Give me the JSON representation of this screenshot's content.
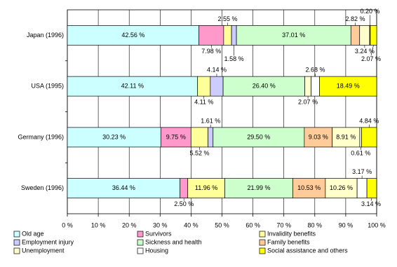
{
  "chart_data": {
    "type": "stacked-bar-horizontal",
    "categories": [
      "Japan (1996)",
      "USA (1995)",
      "Germany (1996)",
      "Sweden (1996)"
    ],
    "series": [
      {
        "name": "Old age",
        "color": "#ccffff",
        "values": [
          42.56,
          42.11,
          30.23,
          36.44
        ],
        "value_labels": [
          "42.56 %",
          "42.11 %",
          "30.23 %",
          "36.44 %"
        ]
      },
      {
        "name": "Survivors",
        "color": "#ff99cc",
        "values": [
          7.98,
          null,
          9.75,
          2.5
        ],
        "value_labels": [
          "7.98 %",
          null,
          "9.75 %",
          "2.50 %"
        ]
      },
      {
        "name": "Invalidity benefits",
        "color": "#ffff99",
        "values": [
          2.55,
          4.11,
          5.52,
          11.96
        ],
        "value_labels": [
          "2.55 %",
          "4.11 %",
          "5.52 %",
          "11.96 %"
        ]
      },
      {
        "name": "Employment injury",
        "color": "#ccccff",
        "values": [
          1.58,
          4.14,
          1.61,
          null
        ],
        "value_labels": [
          "1.58 %",
          "4.14 %",
          "1.61 %",
          null
        ]
      },
      {
        "name": "Sickness and health",
        "color": "#ccffcc",
        "values": [
          37.01,
          26.4,
          29.5,
          21.99
        ],
        "value_labels": [
          "37.01 %",
          "26.40 %",
          "29.50 %",
          "21.99 %"
        ]
      },
      {
        "name": "Family benefits",
        "color": "#ffcc99",
        "values": [
          2.82,
          null,
          9.03,
          10.53
        ],
        "value_labels": [
          "2.82 %",
          null,
          "9.03 %",
          "10.53 %"
        ]
      },
      {
        "name": "Unemployment",
        "color": "#ffffcc",
        "values": [
          3.24,
          2.07,
          8.91,
          10.26
        ],
        "value_labels": [
          "3.24 %",
          "2.07 %",
          "8.91 %",
          "10.26 %"
        ]
      },
      {
        "name": "Housing",
        "color": "#ffffff",
        "values": [
          0.2,
          2.68,
          0.61,
          3.17
        ],
        "value_labels": [
          "0.20 %",
          "2.68 %",
          "0.61 %",
          "3.17 %"
        ]
      },
      {
        "name": "Social assistance and others",
        "color": "#ffff00",
        "values": [
          2.07,
          18.49,
          4.84,
          3.14
        ],
        "value_labels": [
          "2.07 %",
          "18.49 %",
          "4.84 %",
          "3.14 %"
        ]
      }
    ],
    "xlim": [
      0,
      100
    ],
    "xticks": [
      {
        "value": 0,
        "label": "0 %"
      },
      {
        "value": 10,
        "label": "10 %"
      },
      {
        "value": 20,
        "label": "20 %"
      },
      {
        "value": 30,
        "label": "30 %"
      },
      {
        "value": 40,
        "label": "40 %"
      },
      {
        "value": 50,
        "label": "50 %"
      },
      {
        "value": 60,
        "label": "60 %"
      },
      {
        "value": 70,
        "label": "70 %"
      },
      {
        "value": 80,
        "label": "80 %"
      },
      {
        "value": 90,
        "label": "90 %"
      },
      {
        "value": 100,
        "label": "100 %"
      }
    ],
    "grid": true
  }
}
